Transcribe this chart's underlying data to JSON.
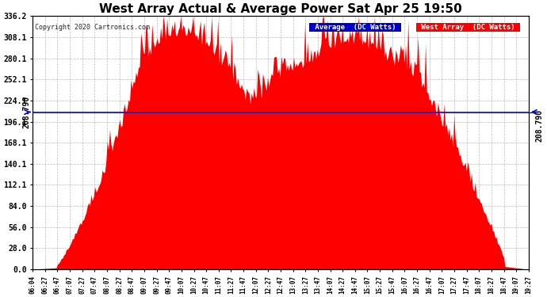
{
  "title": "West Array Actual & Average Power Sat Apr 25 19:50",
  "copyright": "Copyright 2020 Cartronics.com",
  "legend_labels": [
    "Average  (DC Watts)",
    "West Array  (DC Watts)"
  ],
  "average_value": 208.79,
  "y_ticks": [
    0.0,
    28.0,
    56.0,
    84.0,
    112.1,
    140.1,
    168.1,
    196.1,
    224.1,
    252.1,
    280.1,
    308.1,
    336.2
  ],
  "ylim": [
    0.0,
    336.2
  ],
  "fill_color": "#ff0000",
  "avg_line_color": "#0000cc",
  "bg_color": "#ffffff",
  "grid_color": "#aaaaaa",
  "x_labels": [
    "06:04",
    "06:27",
    "06:47",
    "07:07",
    "07:27",
    "07:47",
    "08:07",
    "08:27",
    "08:47",
    "09:07",
    "09:27",
    "09:47",
    "10:07",
    "10:27",
    "10:47",
    "11:07",
    "11:27",
    "11:47",
    "12:07",
    "12:27",
    "12:47",
    "13:07",
    "13:27",
    "13:47",
    "14:07",
    "14:27",
    "14:47",
    "15:07",
    "15:27",
    "15:47",
    "16:07",
    "16:27",
    "16:47",
    "17:07",
    "17:27",
    "17:47",
    "18:07",
    "18:27",
    "18:47",
    "19:07",
    "19:27"
  ],
  "title_fontsize": 11,
  "axis_fontsize": 7,
  "avg_label": "208.790",
  "legend_blue": "#0000cc",
  "legend_red": "#ff0000"
}
